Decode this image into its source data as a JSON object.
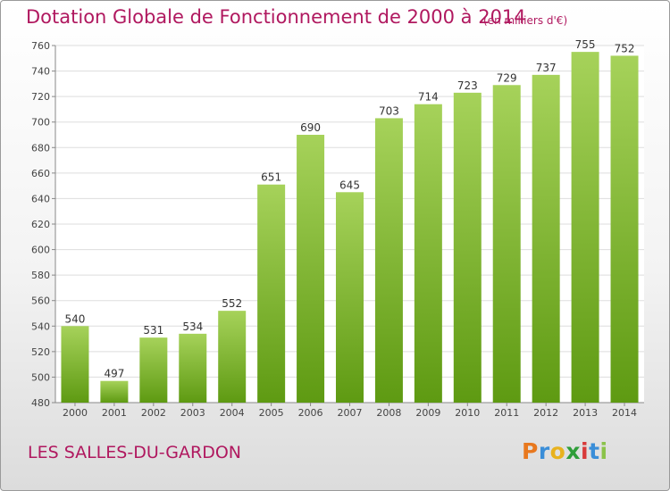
{
  "header": {
    "title": "Dotation Globale de Fonctionnement de 2000 à 2014",
    "unit": "(en milliers d'€)"
  },
  "footer": {
    "commune": "LES SALLES-DU-GARDON",
    "logo": "Proxiti"
  },
  "colors": {
    "title": "#b0185f",
    "bar_light": "#a6d25a",
    "bar_dark": "#5e9a12",
    "grid": "#dddddd"
  },
  "chart_data": {
    "type": "bar",
    "categories": [
      "2000",
      "2001",
      "2002",
      "2003",
      "2004",
      "2005",
      "2006",
      "2007",
      "2008",
      "2009",
      "2010",
      "2011",
      "2012",
      "2013",
      "2014"
    ],
    "values": [
      540,
      497,
      531,
      534,
      552,
      651,
      690,
      645,
      703,
      714,
      723,
      729,
      737,
      755,
      752
    ],
    "ylim": [
      480,
      760
    ],
    "yticks": [
      480,
      500,
      520,
      540,
      560,
      580,
      600,
      620,
      640,
      660,
      680,
      700,
      720,
      740,
      760
    ],
    "grid": true,
    "legend": "none"
  }
}
